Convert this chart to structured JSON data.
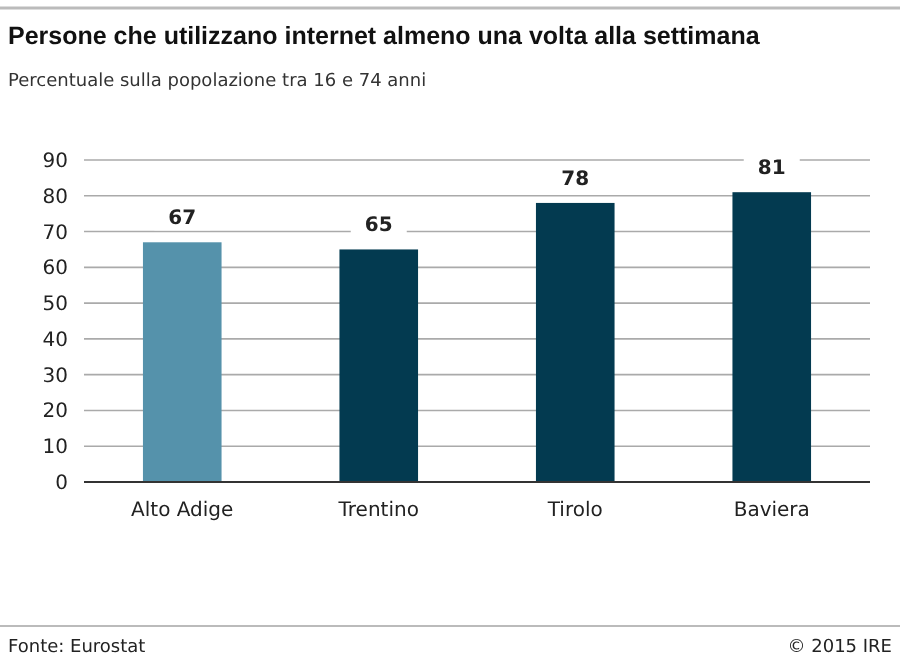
{
  "chart_data": {
    "type": "bar",
    "title": "Persone che utilizzano internet almeno una volta alla settimana",
    "subtitle": "Percentuale sulla popolazione tra 16  e 74 anni",
    "categories": [
      "Alto Adige",
      "Trentino",
      "Tirolo",
      "Baviera"
    ],
    "values": [
      67,
      65,
      78,
      81
    ],
    "colors": [
      "#5592ab",
      "#033a50",
      "#033a50",
      "#033a50"
    ],
    "ylim": [
      0,
      90
    ],
    "yticks": [
      0,
      10,
      20,
      30,
      40,
      50,
      60,
      70,
      80,
      90
    ],
    "grid": "y",
    "data_labels": true,
    "annotations": [
      "Fonte: Eurostat",
      "© 2015 IRE"
    ]
  }
}
